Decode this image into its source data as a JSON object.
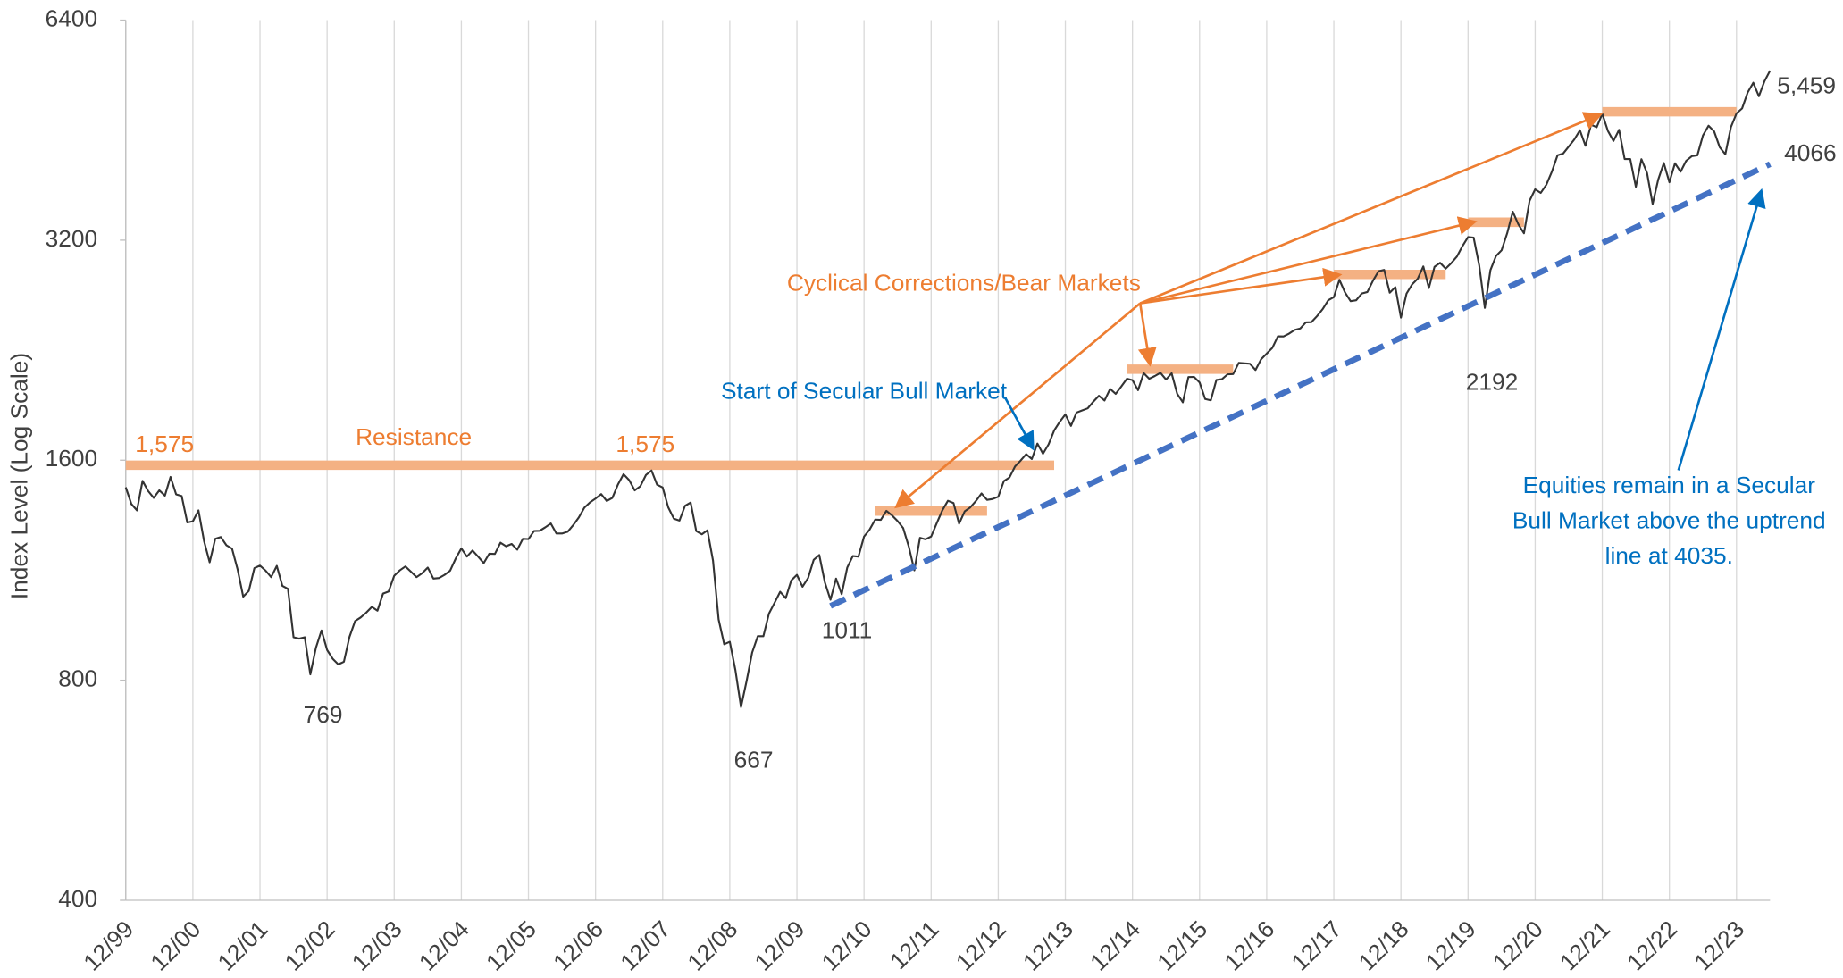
{
  "chart_data": {
    "type": "line",
    "ylabel": "Index Level (Log Scale)",
    "log_scale": true,
    "grid": "x",
    "ylim": [
      400,
      6400
    ],
    "yticks": [
      400,
      800,
      1600,
      3200,
      6400
    ],
    "xticks": [
      "12/99",
      "12/00",
      "12/01",
      "12/02",
      "12/03",
      "12/04",
      "12/05",
      "12/06",
      "12/07",
      "12/08",
      "12/09",
      "12/10",
      "12/11",
      "12/12",
      "12/13",
      "12/14",
      "12/15",
      "12/16",
      "12/17",
      "12/18",
      "12/19",
      "12/20",
      "12/21",
      "12/22",
      "12/23"
    ],
    "x": [
      "12/99",
      "01/00",
      "02/00",
      "03/00",
      "04/00",
      "05/00",
      "06/00",
      "07/00",
      "08/00",
      "09/00",
      "10/00",
      "11/00",
      "12/00",
      "01/01",
      "02/01",
      "03/01",
      "04/01",
      "05/01",
      "06/01",
      "07/01",
      "08/01",
      "09/01",
      "10/01",
      "11/01",
      "12/01",
      "01/02",
      "02/02",
      "03/02",
      "04/02",
      "05/02",
      "06/02",
      "07/02",
      "08/02",
      "09/02",
      "10/02",
      "11/02",
      "12/02",
      "01/03",
      "02/03",
      "03/03",
      "04/03",
      "05/03",
      "06/03",
      "07/03",
      "08/03",
      "09/03",
      "10/03",
      "11/03",
      "12/03",
      "01/04",
      "02/04",
      "03/04",
      "04/04",
      "05/04",
      "06/04",
      "07/04",
      "08/04",
      "09/04",
      "10/04",
      "11/04",
      "12/04",
      "01/05",
      "02/05",
      "03/05",
      "04/05",
      "05/05",
      "06/05",
      "07/05",
      "08/05",
      "09/05",
      "10/05",
      "11/05",
      "12/05",
      "01/06",
      "02/06",
      "03/06",
      "04/06",
      "05/06",
      "06/06",
      "07/06",
      "08/06",
      "09/06",
      "10/06",
      "11/06",
      "12/06",
      "01/07",
      "02/07",
      "03/07",
      "04/07",
      "05/07",
      "06/07",
      "07/07",
      "08/07",
      "09/07",
      "10/07",
      "11/07",
      "12/07",
      "01/08",
      "02/08",
      "03/08",
      "04/08",
      "05/08",
      "06/08",
      "07/08",
      "08/08",
      "09/08",
      "10/08",
      "11/08",
      "12/08",
      "01/09",
      "02/09",
      "03/09",
      "04/09",
      "05/09",
      "06/09",
      "07/09",
      "08/09",
      "09/09",
      "10/09",
      "11/09",
      "12/09",
      "01/10",
      "02/10",
      "03/10",
      "04/10",
      "05/10",
      "06/10",
      "07/10",
      "08/10",
      "09/10",
      "10/10",
      "11/10",
      "12/10",
      "01/11",
      "02/11",
      "03/11",
      "04/11",
      "05/11",
      "06/11",
      "07/11",
      "08/11",
      "09/11",
      "10/11",
      "11/11",
      "12/11",
      "01/12",
      "02/12",
      "03/12",
      "04/12",
      "05/12",
      "06/12",
      "07/12",
      "08/12",
      "09/12",
      "10/12",
      "11/12",
      "12/12",
      "01/13",
      "02/13",
      "03/13",
      "04/13",
      "05/13",
      "06/13",
      "07/13",
      "08/13",
      "09/13",
      "10/13",
      "11/13",
      "12/13",
      "01/14",
      "02/14",
      "03/14",
      "04/14",
      "05/14",
      "06/14",
      "07/14",
      "08/14",
      "09/14",
      "10/14",
      "11/14",
      "12/14",
      "01/15",
      "02/15",
      "03/15",
      "04/15",
      "05/15",
      "06/15",
      "07/15",
      "08/15",
      "09/15",
      "10/15",
      "11/15",
      "12/15",
      "01/16",
      "02/16",
      "03/16",
      "04/16",
      "05/16",
      "06/16",
      "07/16",
      "08/16",
      "09/16",
      "10/16",
      "11/16",
      "12/16",
      "01/17",
      "02/17",
      "03/17",
      "04/17",
      "05/17",
      "06/17",
      "07/17",
      "08/17",
      "09/17",
      "10/17",
      "11/17",
      "12/17",
      "01/18",
      "02/18",
      "03/18",
      "04/18",
      "05/18",
      "06/18",
      "07/18",
      "08/18",
      "09/18",
      "10/18",
      "11/18",
      "12/18",
      "01/19",
      "02/19",
      "03/19",
      "04/19",
      "05/19",
      "06/19",
      "07/19",
      "08/19",
      "09/19",
      "10/19",
      "11/19",
      "12/19",
      "01/20",
      "02/20",
      "03/20",
      "04/20",
      "05/20",
      "06/20",
      "07/20",
      "08/20",
      "09/20",
      "10/20",
      "11/20",
      "12/20",
      "01/21",
      "02/21",
      "03/21",
      "04/21",
      "05/21",
      "06/21",
      "07/21",
      "08/21",
      "09/21",
      "10/21",
      "11/21",
      "12/21",
      "01/22",
      "02/22",
      "03/22",
      "04/22",
      "05/22",
      "06/22",
      "07/22",
      "08/22",
      "09/22",
      "10/22",
      "11/22",
      "12/22",
      "01/23",
      "02/23",
      "03/23",
      "04/23",
      "05/23",
      "06/23",
      "07/23",
      "08/23",
      "09/23",
      "10/23",
      "11/23",
      "12/23",
      "01/24",
      "02/24",
      "03/24",
      "04/24",
      "05/24",
      "06/24"
    ],
    "series": [
      {
        "color": "#333333",
        "end_label": "5,459",
        "values": [
          1469,
          1394,
          1366,
          1499,
          1452,
          1421,
          1455,
          1431,
          1518,
          1437,
          1429,
          1315,
          1320,
          1366,
          1240,
          1160,
          1249,
          1256,
          1224,
          1211,
          1134,
          1041,
          1060,
          1139,
          1148,
          1130,
          1107,
          1147,
          1077,
          1067,
          916,
          912,
          916,
          815,
          886,
          936,
          880,
          856,
          841,
          848,
          917,
          964,
          975,
          990,
          1008,
          996,
          1051,
          1058,
          1112,
          1131,
          1145,
          1126,
          1107,
          1121,
          1141,
          1102,
          1104,
          1115,
          1130,
          1174,
          1212,
          1181,
          1204,
          1181,
          1157,
          1192,
          1191,
          1234,
          1220,
          1229,
          1207,
          1249,
          1248,
          1280,
          1281,
          1295,
          1311,
          1270,
          1270,
          1277,
          1304,
          1336,
          1378,
          1401,
          1418,
          1438,
          1407,
          1421,
          1482,
          1531,
          1503,
          1455,
          1474,
          1527,
          1549,
          1481,
          1468,
          1379,
          1331,
          1323,
          1386,
          1400,
          1280,
          1267,
          1283,
          1166,
          969,
          896,
          903,
          826,
          735,
          798,
          873,
          919,
          919,
          987,
          1021,
          1057,
          1036,
          1096,
          1115,
          1074,
          1104,
          1169,
          1187,
          1089,
          1031,
          1102,
          1049,
          1141,
          1183,
          1181,
          1258,
          1286,
          1327,
          1326,
          1364,
          1345,
          1321,
          1292,
          1219,
          1131,
          1253,
          1247,
          1258,
          1312,
          1366,
          1408,
          1398,
          1310,
          1362,
          1379,
          1407,
          1441,
          1412,
          1416,
          1426,
          1498,
          1515,
          1569,
          1598,
          1631,
          1606,
          1686,
          1633,
          1682,
          1757,
          1806,
          1848,
          1783,
          1859,
          1872,
          1884,
          1924,
          1960,
          1931,
          2003,
          1972,
          2018,
          2068,
          2059,
          1995,
          2105,
          2068,
          2086,
          2107,
          2063,
          2104,
          1972,
          1920,
          2079,
          2080,
          2044,
          1940,
          1932,
          2060,
          2065,
          2097,
          2099,
          2174,
          2171,
          2168,
          2126,
          2199,
          2239,
          2279,
          2364,
          2363,
          2384,
          2412,
          2423,
          2470,
          2472,
          2519,
          2575,
          2648,
          2674,
          2824,
          2714,
          2641,
          2648,
          2705,
          2718,
          2816,
          2902,
          2914,
          2712,
          2760,
          2507,
          2704,
          2784,
          2834,
          2946,
          2752,
          2942,
          2980,
          2926,
          2977,
          3038,
          3141,
          3231,
          3226,
          2954,
          2585,
          2912,
          3044,
          3100,
          3271,
          3500,
          3363,
          3270,
          3622,
          3756,
          3714,
          3811,
          3973,
          4181,
          4204,
          4298,
          4395,
          4523,
          4308,
          4605,
          4567,
          4766,
          4516,
          4374,
          4530,
          4132,
          4132,
          3785,
          4130,
          3955,
          3586,
          3872,
          4080,
          3840,
          4077,
          3970,
          4109,
          4169,
          4180,
          4450,
          4589,
          4508,
          4288,
          4194,
          4568,
          4770,
          4846,
          5096,
          5254,
          5036,
          5278,
          5459
        ]
      }
    ],
    "resistance": {
      "value": 1575,
      "label": "1,575",
      "from": "12/99",
      "to": "10/13",
      "color": "#F4B183"
    },
    "corrections": [
      {
        "value": 1363,
        "from": "02/11",
        "to": "10/12"
      },
      {
        "value": 2131,
        "from": "11/14",
        "to": "06/16"
      },
      {
        "value": 2873,
        "from": "12/17",
        "to": "08/19"
      },
      {
        "value": 3386,
        "from": "12/19",
        "to": "10/20"
      },
      {
        "value": 4796,
        "from": "12/21",
        "to": "12/23"
      }
    ],
    "trendline": {
      "color": "#4472C4",
      "start": {
        "x": "06/10",
        "value": 1011
      },
      "end": {
        "x": "06/24",
        "value": 4066
      }
    },
    "lows": [
      {
        "x": "10/02",
        "value": 769
      },
      {
        "x": "03/09",
        "value": 667
      },
      {
        "x": "03/20",
        "value": 2192
      }
    ],
    "annotations": {
      "resistance": "Resistance",
      "corrections": "Cyclical Corrections/Bear Markets",
      "bull_start": "Start of Secular Bull Market",
      "remain": [
        "Equities remain in a Secular",
        "Bull Market above the uptrend",
        "line at 4035."
      ]
    }
  }
}
